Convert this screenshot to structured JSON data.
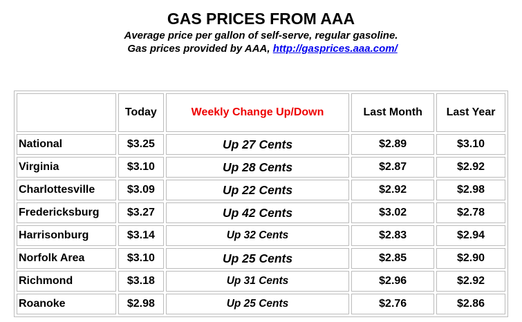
{
  "header": {
    "title": "GAS PRICES FROM AAA",
    "subtitle": "Average price per gallon of self-serve, regular gasoline.",
    "source_prefix": "Gas prices provided by AAA,",
    "source_link": "http://gasprices.aaa.com/"
  },
  "table": {
    "columns": [
      "Today",
      "Weekly Change Up/Down",
      "Last Month",
      "Last Year"
    ],
    "rows": [
      [
        "National",
        "$3.25",
        "Up 27 Cents",
        "$2.89",
        "$3.10"
      ],
      [
        "Virginia",
        "$3.10",
        "Up 28 Cents",
        "$2.87",
        "$2.92"
      ],
      [
        "Charlottesville",
        "$3.09",
        "Up 22 Cents",
        "$2.92",
        "$2.98"
      ],
      [
        "Fredericksburg",
        "$3.27",
        "Up 42 Cents",
        "$3.02",
        "$2.78"
      ],
      [
        "Harrisonburg",
        "$3.14",
        "Up 32 Cents",
        "$2.83",
        "$2.94"
      ],
      [
        "Norfolk Area",
        "$3.10",
        "Up 25 Cents",
        "$2.85",
        "$2.90"
      ],
      [
        "Richmond",
        "$3.18",
        "Up 31 Cents",
        "$2.96",
        "$2.92"
      ],
      [
        "Roanoke",
        "$2.98",
        "Up 25 Cents",
        "$2.76",
        "$2.86"
      ]
    ]
  }
}
